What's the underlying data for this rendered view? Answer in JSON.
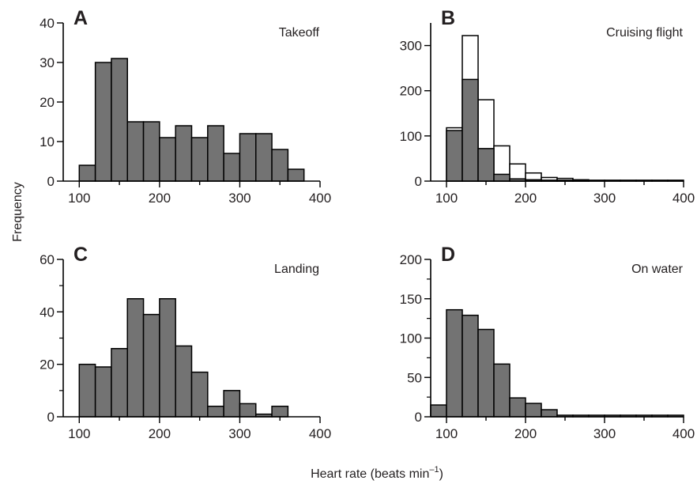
{
  "figure": {
    "ylabel": "Frequency",
    "xlabel": "Heart rate (beats min",
    "xlabel_unit_superscript": "–1",
    "xlabel_close": ")"
  },
  "colors": {
    "filled_bar": "#737373",
    "open_bar": "#ffffff",
    "outline": "#000000",
    "text": "#231f20"
  },
  "chart_data": [
    {
      "panel": "A",
      "title": "Takeoff",
      "type": "bar",
      "bin_width": 20,
      "xlim": [
        80,
        400
      ],
      "ylim": [
        0,
        40
      ],
      "xticks": [
        100,
        200,
        300,
        400
      ],
      "yticks": [
        0,
        10,
        20,
        30,
        40
      ],
      "series": [
        {
          "style": "filled",
          "bin_starts": [
            100,
            120,
            140,
            160,
            180,
            200,
            220,
            240,
            260,
            280,
            300,
            320,
            340,
            360
          ],
          "values": [
            4,
            30,
            31,
            15,
            15,
            11,
            14,
            11,
            14,
            7,
            12,
            12,
            8,
            3
          ]
        }
      ]
    },
    {
      "panel": "B",
      "title": "Cruising flight",
      "type": "bar",
      "bin_width": 20,
      "xlim": [
        80,
        400
      ],
      "ylim": [
        0,
        350
      ],
      "xticks": [
        100,
        200,
        300,
        400
      ],
      "yticks": [
        0,
        100,
        200,
        300
      ],
      "series": [
        {
          "style": "open",
          "bin_starts": [
            100,
            120,
            140,
            160,
            180,
            200,
            220,
            240,
            260,
            280,
            300,
            320,
            340,
            360,
            380
          ],
          "values": [
            118,
            322,
            180,
            78,
            38,
            18,
            8,
            6,
            3,
            2,
            2,
            2,
            2,
            2,
            2
          ]
        },
        {
          "style": "filled",
          "bin_starts": [
            100,
            120,
            140,
            160,
            180,
            200,
            220,
            240,
            260
          ],
          "values": [
            112,
            225,
            72,
            15,
            5,
            3,
            2,
            2,
            1
          ]
        }
      ]
    },
    {
      "panel": "C",
      "title": "Landing",
      "type": "bar",
      "bin_width": 20,
      "xlim": [
        80,
        400
      ],
      "ylim": [
        0,
        60
      ],
      "xticks": [
        100,
        200,
        300,
        400
      ],
      "yticks": [
        0,
        20,
        40,
        60
      ],
      "series": [
        {
          "style": "filled",
          "bin_starts": [
            100,
            120,
            140,
            160,
            180,
            200,
            220,
            240,
            260,
            280,
            300,
            320,
            340
          ],
          "values": [
            20,
            19,
            26,
            45,
            39,
            45,
            27,
            17,
            4,
            10,
            5,
            1,
            4
          ]
        }
      ]
    },
    {
      "panel": "D",
      "title": "On water",
      "type": "bar",
      "bin_width": 20,
      "xlim": [
        80,
        400
      ],
      "ylim": [
        0,
        200
      ],
      "xticks": [
        100,
        200,
        300,
        400
      ],
      "yticks": [
        0,
        50,
        100,
        150,
        200
      ],
      "series": [
        {
          "style": "filled",
          "bin_starts": [
            80,
            100,
            120,
            140,
            160,
            180,
            200,
            220,
            240,
            260,
            280,
            300,
            320,
            340,
            360,
            380
          ],
          "values": [
            15,
            136,
            129,
            111,
            67,
            24,
            17,
            9,
            2,
            2,
            2,
            2,
            2,
            2,
            2,
            2
          ]
        }
      ]
    }
  ]
}
